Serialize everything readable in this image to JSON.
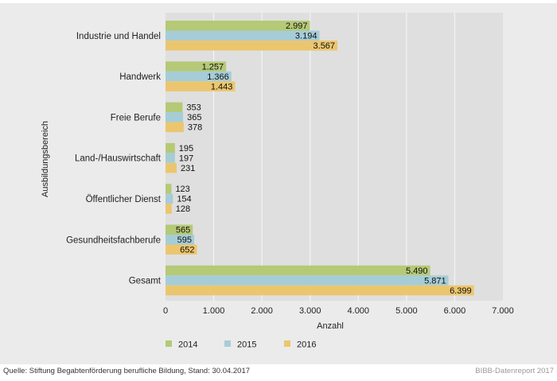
{
  "chart_data": {
    "type": "bar",
    "orientation": "horizontal",
    "title": "",
    "categories": [
      "Industrie und Handel",
      "Handwerk",
      "Freie Berufe",
      "Land-/Hauswirtschaft",
      "Öffentlicher Dienst",
      "Gesundheitsfachberufe",
      "Gesamt"
    ],
    "series": [
      {
        "name": "2014",
        "color": "#b5c976",
        "values": [
          2997,
          1257,
          353,
          195,
          123,
          565,
          5490
        ],
        "labels": [
          "2.997",
          "1.257",
          "353",
          "195",
          "123",
          "565",
          "5.490"
        ]
      },
      {
        "name": "2015",
        "color": "#a6cdd7",
        "values": [
          3194,
          1366,
          365,
          197,
          154,
          595,
          5871
        ],
        "labels": [
          "3.194",
          "1.366",
          "365",
          "197",
          "154",
          "595",
          "5.871"
        ]
      },
      {
        "name": "2016",
        "color": "#ecc66e",
        "values": [
          3567,
          1443,
          378,
          231,
          128,
          652,
          6399
        ],
        "labels": [
          "3.567",
          "1.443",
          "378",
          "231",
          "128",
          "652",
          "6.399"
        ]
      }
    ],
    "xlabel": "Anzahl",
    "ylabel": "Ausbildungsbereich",
    "xlim": [
      0,
      7000
    ],
    "xticks": [
      0,
      1000,
      2000,
      3000,
      4000,
      5000,
      6000,
      7000
    ],
    "xtick_labels": [
      "0",
      "1.000",
      "2.000",
      "3.000",
      "4.000",
      "5.000",
      "6.000",
      "7.000"
    ],
    "grid": true,
    "legend_position": "bottom-left"
  },
  "footer": {
    "source": "Quelle: Stiftung Begabtenförderung berufliche Bildung, Stand: 30.04.2017",
    "brand": "BIBB-Datenreport 2017"
  }
}
